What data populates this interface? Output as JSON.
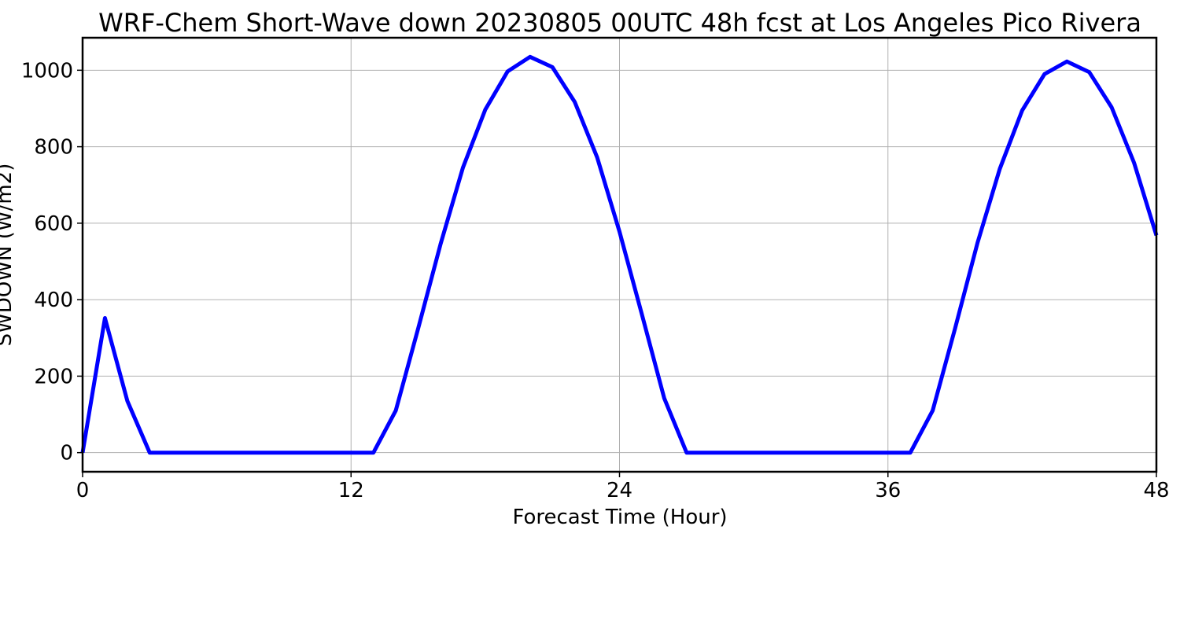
{
  "chart_data": {
    "type": "line",
    "title": "WRF-Chem Short-Wave down  20230805 00UTC 48h fcst at Los Angeles Pico Rivera",
    "xlabel": "Forecast Time (Hour)",
    "ylabel": "SWDOWN  (W/m2)",
    "xlim": [
      0,
      48
    ],
    "ylim": [
      -50,
      1085
    ],
    "xticks": [
      0,
      12,
      24,
      36,
      48
    ],
    "yticks": [
      0,
      200,
      400,
      600,
      800,
      1000
    ],
    "grid": true,
    "line_color": "#0000ff",
    "series": [
      {
        "x": [
          0,
          1,
          2,
          3,
          4,
          5,
          6,
          7,
          8,
          9,
          10,
          11,
          12,
          13,
          14,
          15,
          16,
          17,
          18,
          19,
          20,
          21,
          22,
          23,
          24,
          25,
          26,
          27,
          28,
          29,
          30,
          31,
          32,
          33,
          34,
          35,
          36,
          37,
          38,
          39,
          40,
          41,
          42,
          43,
          44,
          45,
          46,
          47,
          48
        ],
        "values": [
          0,
          352,
          135,
          0,
          0,
          0,
          0,
          0,
          0,
          0,
          0,
          0,
          0,
          0,
          110,
          325,
          545,
          745,
          897,
          997,
          1035,
          1008,
          917,
          772,
          578,
          362,
          142,
          0,
          0,
          0,
          0,
          0,
          0,
          0,
          0,
          0,
          0,
          0,
          110,
          325,
          548,
          742,
          895,
          990,
          1023,
          995,
          903,
          758,
          568
        ]
      }
    ]
  }
}
